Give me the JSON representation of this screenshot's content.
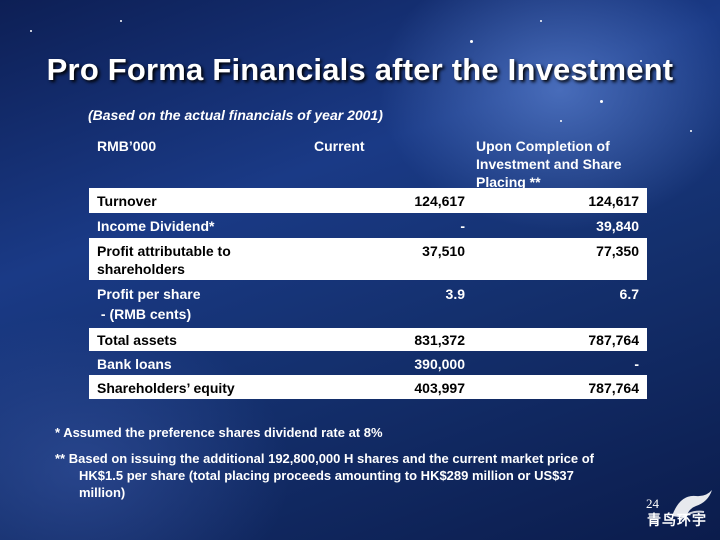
{
  "title": "Pro Forma Financials after the Investment",
  "subtitle": "(Based on the actual financials of year 2001)",
  "table": {
    "headers": {
      "label": "RMB’000",
      "current": "Current",
      "upon_line1": "Upon Completion of",
      "upon_line2": "Investment and Share",
      "upon_line3": "Placing **"
    },
    "rows": [
      {
        "label": "Turnover",
        "current": "124,617",
        "upon": "124,617"
      },
      {
        "label": "Income Dividend*",
        "current": "-",
        "upon": "39,840"
      },
      {
        "label": "Profit attributable to",
        "label2": "shareholders",
        "current": "37,510",
        "upon": "77,350"
      },
      {
        "label": "Profit per share",
        "label2": " - (RMB cents)",
        "current": "3.9",
        "upon": "6.7"
      },
      {
        "label": "Total assets",
        "current": "831,372",
        "upon": "787,764"
      },
      {
        "label": "Bank loans",
        "current": "390,000",
        "upon": "-"
      },
      {
        "label": "Shareholders’ equity",
        "current": "403,997",
        "upon": "787,764"
      }
    ]
  },
  "notes": {
    "note1": "*   Assumed  the preference shares dividend rate at 8%",
    "note2_line1": "** Based on issuing the additional 192,800,000 H shares and the current market price of",
    "note2_line2": "HK$1.5 per share (total placing proceeds amounting to HK$289 million or US$37",
    "note2_line3": "million)"
  },
  "page_number": "24",
  "logo": {
    "text": "青鸟环宇"
  },
  "colors": {
    "background": "#14306e",
    "table_shade": "#ffffff",
    "text": "#ffffff"
  }
}
